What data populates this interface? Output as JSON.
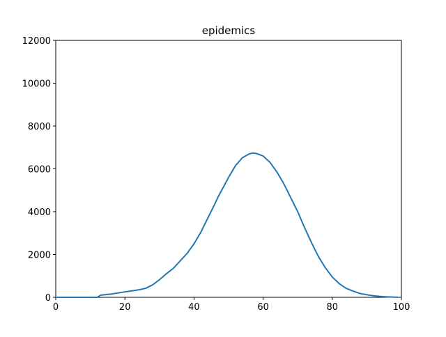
{
  "chart_data": {
    "type": "line",
    "title": "epidemics",
    "xlabel": "",
    "ylabel": "",
    "xlim": [
      0,
      100
    ],
    "ylim": [
      0,
      12000
    ],
    "x_ticks": [
      0,
      20,
      40,
      60,
      80,
      100
    ],
    "y_ticks": [
      0,
      2000,
      4000,
      6000,
      8000,
      10000,
      12000
    ],
    "grid": false,
    "colors": {
      "line": "#1f77b4",
      "axes": "#000000",
      "background": "#ffffff"
    },
    "series": [
      {
        "x": [
          0,
          12,
          13,
          16,
          19,
          22,
          24,
          26,
          28,
          30,
          32,
          34,
          36,
          38,
          40,
          42,
          44,
          46,
          47,
          48,
          50,
          52,
          54,
          56,
          57,
          58,
          60,
          62,
          64,
          66,
          68,
          70,
          72,
          74,
          76,
          78,
          80,
          82,
          84,
          86,
          88,
          90,
          92,
          94,
          96,
          98,
          99
        ],
        "values": [
          0,
          0,
          100,
          150,
          230,
          300,
          350,
          420,
          580,
          820,
          1100,
          1350,
          1700,
          2050,
          2500,
          3050,
          3700,
          4350,
          4700,
          5000,
          5600,
          6150,
          6520,
          6700,
          6740,
          6720,
          6600,
          6300,
          5850,
          5300,
          4650,
          4000,
          3250,
          2550,
          1900,
          1380,
          950,
          640,
          420,
          290,
          180,
          120,
          70,
          40,
          20,
          10,
          5
        ]
      }
    ]
  }
}
